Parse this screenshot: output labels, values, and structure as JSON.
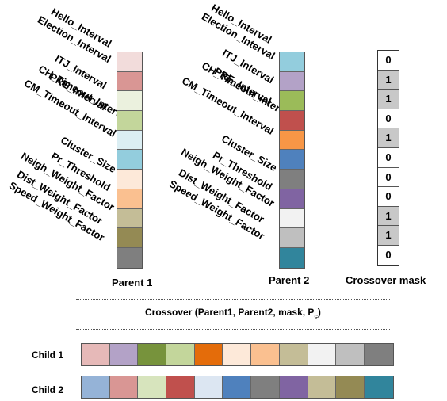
{
  "parameters": [
    "Hello_Interval",
    "Election_Interval",
    "ITJ_Interval",
    "PRE_Interval",
    "CH_Timeout_Interval",
    "CM_Timeout_Interval",
    "Cluster_Size",
    "Pr_Threshold",
    "Neigh_Weight_Factor",
    "Dist_Weight_Factor",
    "Speed_Weight_Factor"
  ],
  "parent1": {
    "label": "Parent 1",
    "colors": [
      "#f2dcdb",
      "#d99694",
      "#ebf1de",
      "#c3d69b",
      "#dbeef3",
      "#93cddd",
      "#fde9d9",
      "#fac090",
      "#c4bd97",
      "#948a54",
      "#7f7f7f"
    ]
  },
  "parent2": {
    "label": "Parent 2",
    "colors": [
      "#93cddd",
      "#b3a2c7",
      "#9bbb59",
      "#c0504d",
      "#f79646",
      "#4f81bd",
      "#7f7f7f",
      "#8064a2",
      "#f2f2f2",
      "#bfbfbf",
      "#31859c"
    ]
  },
  "mask": {
    "label": "Crossover mask",
    "bits": [
      "0",
      "1",
      "1",
      "0",
      "1",
      "0",
      "0",
      "0",
      "1",
      "1",
      "0"
    ]
  },
  "crossover": {
    "text": "Crossover (Parent1, Parent2, mask, P",
    "subscript": "c",
    "suffix": ")"
  },
  "child1": {
    "label": "Child 1",
    "colors": [
      "#e6b9b8",
      "#b3a2c7",
      "#77933c",
      "#c3d69b",
      "#e46c0a",
      "#fde9d9",
      "#fac090",
      "#c4bd97",
      "#f2f2f2",
      "#bfbfbf",
      "#7f7f7f"
    ]
  },
  "child2": {
    "label": "Child 2",
    "colors": [
      "#95b3d7",
      "#d99694",
      "#d7e4bd",
      "#c0504d",
      "#dce6f2",
      "#4f81bd",
      "#7f7f7f",
      "#8064a2",
      "#c4bd97",
      "#948a54",
      "#31859c"
    ]
  }
}
